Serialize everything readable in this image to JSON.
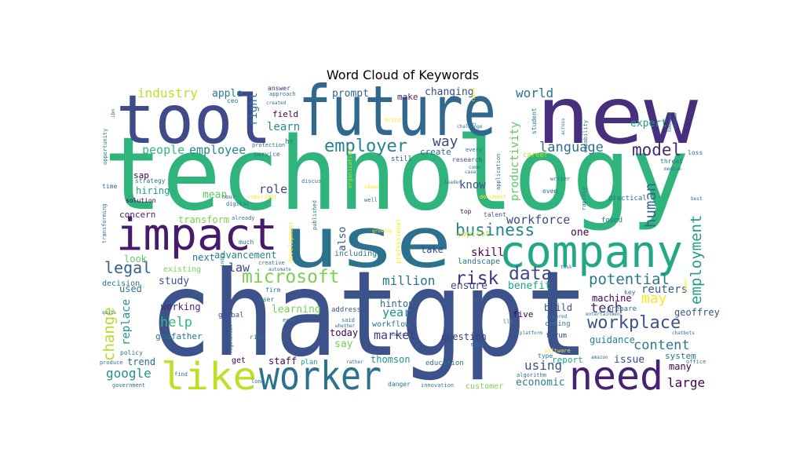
{
  "chart_data": {
    "type": "wordcloud",
    "title": "Word Cloud of Keywords",
    "colormap": "viridis",
    "background": "#ffffff",
    "words": [
      {
        "text": "chatgpt",
        "weight": 1.0,
        "color": "#3b528b"
      },
      {
        "text": "technology",
        "weight": 0.92,
        "color": "#2fb47c"
      },
      {
        "text": "new",
        "weight": 0.8,
        "color": "#472f7d"
      },
      {
        "text": "tool",
        "weight": 0.62,
        "color": "#3e4a89"
      },
      {
        "text": "future",
        "weight": 0.62,
        "color": "#31688e"
      },
      {
        "text": "use",
        "weight": 0.62,
        "color": "#2c728e"
      },
      {
        "text": "impact",
        "weight": 0.45,
        "color": "#481a6c"
      },
      {
        "text": "company",
        "weight": 0.45,
        "color": "#22a884"
      },
      {
        "text": "like",
        "weight": 0.42,
        "color": "#bddf26"
      },
      {
        "text": "worker",
        "weight": 0.4,
        "color": "#2c728e"
      },
      {
        "text": "need",
        "weight": 0.4,
        "color": "#482173"
      },
      {
        "text": "employer",
        "weight": 0.22,
        "color": "#26828e"
      },
      {
        "text": "microsoft",
        "weight": 0.21,
        "color": "#7ad151"
      },
      {
        "text": "workplace",
        "weight": 0.21,
        "color": "#3b528b"
      },
      {
        "text": "business",
        "weight": 0.18,
        "color": "#26828e"
      },
      {
        "text": "risk",
        "weight": 0.18,
        "color": "#46337e"
      },
      {
        "text": "data",
        "weight": 0.18,
        "color": "#3e4989"
      },
      {
        "text": "legal",
        "weight": 0.17,
        "color": "#33638d"
      },
      {
        "text": "model",
        "weight": 0.17,
        "color": "#482878"
      },
      {
        "text": "potential",
        "weight": 0.17,
        "color": "#2a788e"
      },
      {
        "text": "may",
        "weight": 0.16,
        "color": "#fde725"
      },
      {
        "text": "change",
        "weight": 0.16,
        "color": "#b5de2b"
      },
      {
        "text": "language",
        "weight": 0.14,
        "color": "#2d708e"
      },
      {
        "text": "way",
        "weight": 0.15,
        "color": "#3e4989"
      },
      {
        "text": "human",
        "weight": 0.15,
        "color": "#31688e"
      },
      {
        "text": "employment",
        "weight": 0.14,
        "color": "#1f9e89"
      },
      {
        "text": "help",
        "weight": 0.14,
        "color": "#35b779"
      },
      {
        "text": "content",
        "weight": 0.14,
        "color": "#2a788e"
      },
      {
        "text": "tech",
        "weight": 0.14,
        "color": "#482475"
      },
      {
        "text": "million",
        "weight": 0.13,
        "color": "#2c728e"
      },
      {
        "text": "google",
        "weight": 0.13,
        "color": "#21918c"
      },
      {
        "text": "using",
        "weight": 0.13,
        "color": "#3b528b"
      },
      {
        "text": "large",
        "weight": 0.13,
        "color": "#440154"
      },
      {
        "text": "industry",
        "weight": 0.13,
        "color": "#bddf26"
      },
      {
        "text": "world",
        "weight": 0.12,
        "color": "#2c728e"
      },
      {
        "text": "employee",
        "weight": 0.12,
        "color": "#25858e"
      },
      {
        "text": "people",
        "weight": 0.12,
        "color": "#35b779"
      },
      {
        "text": "workforce",
        "weight": 0.12,
        "color": "#3e4989"
      },
      {
        "text": "year",
        "weight": 0.12,
        "color": "#21918c"
      },
      {
        "text": "replace",
        "weight": 0.12,
        "color": "#21918c"
      },
      {
        "text": "role",
        "weight": 0.11,
        "color": "#414487"
      },
      {
        "text": "law",
        "weight": 0.11,
        "color": "#414487"
      },
      {
        "text": "skill",
        "weight": 0.11,
        "color": "#440154"
      },
      {
        "text": "market",
        "weight": 0.11,
        "color": "#443983"
      },
      {
        "text": "productivity",
        "weight": 0.11,
        "color": "#5ec962"
      },
      {
        "text": "learn",
        "weight": 0.1,
        "color": "#238a8d"
      },
      {
        "text": "right",
        "weight": 0.1,
        "color": "#2c728e"
      },
      {
        "text": "know",
        "weight": 0.1,
        "color": "#3b528b"
      },
      {
        "text": "expert",
        "weight": 0.1,
        "color": "#1f9e89"
      },
      {
        "text": "machine",
        "weight": 0.09,
        "color": "#440154"
      },
      {
        "text": "reuters",
        "weight": 0.09,
        "color": "#355f8d"
      },
      {
        "text": "ensure",
        "weight": 0.09,
        "color": "#3e4a89"
      },
      {
        "text": "benefit",
        "weight": 0.09,
        "color": "#20a386"
      },
      {
        "text": "mean",
        "weight": 0.09,
        "color": "#5ec962"
      },
      {
        "text": "study",
        "weight": 0.09,
        "color": "#3b528b"
      },
      {
        "text": "learning",
        "weight": 0.09,
        "color": "#7ad151"
      },
      {
        "text": "transform",
        "weight": 0.09,
        "color": "#7ad151"
      },
      {
        "text": "hiring",
        "weight": 0.09,
        "color": "#1f9e89"
      },
      {
        "text": "changing",
        "weight": 0.09,
        "color": "#3e4989"
      },
      {
        "text": "prompt",
        "weight": 0.09,
        "color": "#31688e"
      },
      {
        "text": "apple",
        "weight": 0.09,
        "color": "#2a788e"
      },
      {
        "text": "geoffrey",
        "weight": 0.09,
        "color": "#3b528b"
      },
      {
        "text": "guidance",
        "weight": 0.09,
        "color": "#277f8e"
      },
      {
        "text": "issue",
        "weight": 0.09,
        "color": "#3e4a89"
      },
      {
        "text": "economic",
        "weight": 0.09,
        "color": "#287d8e"
      },
      {
        "text": "hinton",
        "weight": 0.09,
        "color": "#31688e"
      },
      {
        "text": "say",
        "weight": 0.09,
        "color": "#7ad151"
      },
      {
        "text": "also",
        "weight": 0.09,
        "color": "#39568c"
      },
      {
        "text": "one",
        "weight": 0.09,
        "color": "#440154"
      },
      {
        "text": "used",
        "weight": 0.09,
        "color": "#2a788e"
      },
      {
        "text": "look",
        "weight": 0.09,
        "color": "#5ec962"
      },
      {
        "text": "next",
        "weight": 0.09,
        "color": "#2c728e"
      },
      {
        "text": "take",
        "weight": 0.09,
        "color": "#3e4a89"
      },
      {
        "text": "many",
        "weight": 0.09,
        "color": "#440154"
      },
      {
        "text": "advancement",
        "weight": 0.08,
        "color": "#26828e"
      },
      {
        "text": "staff",
        "weight": 0.08,
        "color": "#440154"
      },
      {
        "text": "thomson",
        "weight": 0.08,
        "color": "#21918c"
      },
      {
        "text": "working",
        "weight": 0.08,
        "color": "#482475"
      },
      {
        "text": "godfather",
        "weight": 0.08,
        "color": "#2c728e"
      },
      {
        "text": "trend",
        "weight": 0.08,
        "color": "#31688e"
      },
      {
        "text": "build",
        "weight": 0.08,
        "color": "#3b528b"
      },
      {
        "text": "report",
        "weight": 0.08,
        "color": "#20a386"
      },
      {
        "text": "question",
        "weight": 0.08,
        "color": "#443983"
      },
      {
        "text": "today",
        "weight": 0.08,
        "color": "#440154"
      },
      {
        "text": "five",
        "weight": 0.08,
        "color": "#440154"
      },
      {
        "text": "system",
        "weight": 0.08,
        "color": "#2c728e"
      },
      {
        "text": "concern",
        "weight": 0.08,
        "color": "#481a6c"
      },
      {
        "text": "make",
        "weight": 0.07,
        "color": "#482878"
      },
      {
        "text": "field",
        "weight": 0.07,
        "color": "#440154"
      },
      {
        "text": "create",
        "weight": 0.07,
        "color": "#31688e"
      },
      {
        "text": "sap",
        "weight": 0.07,
        "color": "#440154"
      },
      {
        "text": "landscape",
        "weight": 0.06,
        "color": "#2c728e"
      },
      {
        "text": "copilot",
        "weight": 0.06,
        "color": "#bddf26"
      },
      {
        "text": "including",
        "weight": 0.06,
        "color": "#2a788e"
      },
      {
        "text": "existing",
        "weight": 0.06,
        "color": "#7ad151"
      },
      {
        "text": "decision",
        "weight": 0.06,
        "color": "#2c728e"
      },
      {
        "text": "customer",
        "weight": 0.06,
        "color": "#7ad151"
      },
      {
        "text": "workflow",
        "weight": 0.06,
        "color": "#2c728e"
      },
      {
        "text": "education",
        "weight": 0.06,
        "color": "#2c728e"
      },
      {
        "text": "address",
        "weight": 0.06,
        "color": "#3b528b"
      },
      {
        "text": "global",
        "weight": 0.06,
        "color": "#3b528b"
      },
      {
        "text": "plan",
        "weight": 0.06,
        "color": "#1f9e89"
      },
      {
        "text": "get",
        "weight": 0.06,
        "color": "#440154"
      },
      {
        "text": "forum",
        "weight": 0.06,
        "color": "#3b528b"
      },
      {
        "text": "coming",
        "weight": 0.06,
        "color": "#2a788e"
      },
      {
        "text": "prepare",
        "weight": 0.06,
        "color": "#2c728e"
      },
      {
        "text": "practical",
        "weight": 0.06,
        "color": "#2c728e"
      },
      {
        "text": "career",
        "weight": 0.06,
        "color": "#bddf26"
      },
      {
        "text": "still",
        "weight": 0.06,
        "color": "#3b528b"
      },
      {
        "text": "research",
        "weight": 0.06,
        "color": "#3b528b"
      },
      {
        "text": "answer",
        "weight": 0.06,
        "color": "#482878"
      },
      {
        "text": "ceo",
        "weight": 0.06,
        "color": "#2a788e"
      },
      {
        "text": "hr",
        "weight": 0.06,
        "color": "#2c728e"
      },
      {
        "text": "strategy",
        "weight": 0.05,
        "color": "#2c728e"
      },
      {
        "text": "solution",
        "weight": 0.05,
        "color": "#440154"
      },
      {
        "text": "time",
        "weight": 0.05,
        "color": "#2c728e"
      },
      {
        "text": "found",
        "weight": 0.05,
        "color": "#2c728e"
      },
      {
        "text": "top",
        "weight": 0.05,
        "color": "#440154"
      },
      {
        "text": "talent",
        "weight": 0.05,
        "color": "#3b528b"
      },
      {
        "text": "even",
        "weight": 0.05,
        "color": "#2c728e"
      },
      {
        "text": "writer",
        "weight": 0.05,
        "color": "#2c728e"
      },
      {
        "text": "student",
        "weight": 0.05,
        "color": "#2c728e"
      },
      {
        "text": "service",
        "weight": 0.05,
        "color": "#2c728e"
      },
      {
        "text": "protection",
        "weight": 0.05,
        "color": "#2c728e"
      },
      {
        "text": "creative",
        "weight": 0.05,
        "color": "#2c728e"
      },
      {
        "text": "user",
        "weight": 0.05,
        "color": "#2c728e"
      },
      {
        "text": "firm",
        "weight": 0.05,
        "color": "#2c728e"
      },
      {
        "text": "government",
        "weight": 0.05,
        "color": "#2c728e"
      },
      {
        "text": "produce",
        "weight": 0.05,
        "color": "#2c728e"
      },
      {
        "text": "policy",
        "weight": 0.05,
        "color": "#2c728e"
      },
      {
        "text": "rise",
        "weight": 0.05,
        "color": "#2c728e"
      },
      {
        "text": "danger",
        "weight": 0.05,
        "color": "#2c728e"
      },
      {
        "text": "innovation",
        "weight": 0.05,
        "color": "#2c728e"
      },
      {
        "text": "office",
        "weight": 0.05,
        "color": "#2c728e"
      },
      {
        "text": "loss",
        "weight": 0.05,
        "color": "#2c728e"
      },
      {
        "text": "threat",
        "weight": 0.05,
        "color": "#2c728e"
      },
      {
        "text": "key",
        "weight": 0.05,
        "color": "#2c728e"
      },
      {
        "text": "much",
        "weight": 0.05,
        "color": "#2c728e"
      },
      {
        "text": "digital",
        "weight": 0.04,
        "color": "#2c728e"
      },
      {
        "text": "discus",
        "weight": 0.04,
        "color": "#2c728e"
      },
      {
        "text": "approach",
        "weight": 0.04,
        "color": "#2c728e"
      },
      {
        "text": "copyright",
        "weight": 0.04,
        "color": "#fde725"
      },
      {
        "text": "development",
        "weight": 0.04,
        "color": "#fde725"
      },
      {
        "text": "professional",
        "weight": 0.04,
        "color": "#fde725"
      },
      {
        "text": "published",
        "weight": 0.04,
        "color": "#2c728e"
      },
      {
        "text": "organization",
        "weight": 0.04,
        "color": "#bddf26"
      },
      {
        "text": "opportunity",
        "weight": 0.04,
        "color": "#2c728e"
      },
      {
        "text": "transforming",
        "weight": 0.04,
        "color": "#2c728e"
      },
      {
        "text": "rapidly",
        "weight": 0.04,
        "color": "#2c728e"
      },
      {
        "text": "capability",
        "weight": 0.04,
        "color": "#2c728e"
      },
      {
        "text": "application",
        "weight": 0.04,
        "color": "#2c728e"
      },
      {
        "text": "algorithm",
        "weight": 0.04,
        "color": "#2c728e"
      },
      {
        "text": "amazon",
        "weight": 0.03,
        "color": "#2c728e"
      },
      {
        "text": "chatbots",
        "weight": 0.03,
        "color": "#2c728e"
      },
      {
        "text": "platform",
        "weight": 0.03,
        "color": "#2c728e"
      },
      {
        "text": "entertainment",
        "weight": 0.03,
        "color": "#2c728e"
      },
      {
        "text": "software",
        "weight": 0.03,
        "color": "#fde725"
      },
      {
        "text": "type",
        "weight": 0.03,
        "color": "#2c728e"
      },
      {
        "text": "medium",
        "weight": 0.03,
        "color": "#2c728e"
      },
      {
        "text": "best",
        "weight": 0.03,
        "color": "#2c728e"
      },
      {
        "text": "power",
        "weight": 0.03,
        "color": "#fde725"
      },
      {
        "text": "across",
        "weight": 0.03,
        "color": "#2c728e"
      },
      {
        "text": "challenge",
        "weight": 0.03,
        "color": "#2c728e"
      },
      {
        "text": "leader",
        "weight": 0.03,
        "color": "#2c728e"
      },
      {
        "text": "document",
        "weight": 0.03,
        "color": "#fde725"
      },
      {
        "text": "image",
        "weight": 0.03,
        "color": "#fde725"
      },
      {
        "text": "well",
        "weight": 0.03,
        "color": "#2c728e"
      },
      {
        "text": "growing",
        "weight": 0.03,
        "color": "#fde725"
      },
      {
        "text": "various",
        "weight": 0.03,
        "color": "#2c728e"
      },
      {
        "text": "rather",
        "weight": 0.03,
        "color": "#2c728e"
      },
      {
        "text": "whether",
        "weight": 0.03,
        "color": "#2c728e"
      },
      {
        "text": "said",
        "weight": 0.03,
        "color": "#2c728e"
      },
      {
        "text": "llm",
        "weight": 0.03,
        "color": "#2c728e"
      },
      {
        "text": "must",
        "weight": 0.03,
        "color": "#2c728e"
      },
      {
        "text": "powered",
        "weight": 0.03,
        "color": "#2c728e"
      },
      {
        "text": "act",
        "weight": 0.03,
        "color": "#2c728e"
      },
      {
        "text": "task",
        "weight": 0.03,
        "color": "#2c728e"
      },
      {
        "text": "automate",
        "weight": 0.03,
        "color": "#2c728e"
      },
      {
        "text": "eeoc",
        "weight": 0.03,
        "color": "#2c728e"
      },
      {
        "text": "regulation",
        "weight": 0.03,
        "color": "#2c728e"
      },
      {
        "text": "india",
        "weight": 0.03,
        "color": "#2c728e"
      },
      {
        "text": "city",
        "weight": 0.03,
        "color": "#2c728e"
      },
      {
        "text": "quits",
        "weight": 0.03,
        "color": "#2c728e"
      },
      {
        "text": "find",
        "weight": 0.03,
        "color": "#2c728e"
      },
      {
        "text": "hour",
        "weight": 0.03,
        "color": "#2c728e"
      },
      {
        "text": "already",
        "weight": 0.03,
        "color": "#2c728e"
      },
      {
        "text": "long",
        "weight": 0.03,
        "color": "#2c728e"
      },
      {
        "text": "ibm",
        "weight": 0.03,
        "color": "#2c728e"
      },
      {
        "text": "created",
        "weight": 0.03,
        "color": "#2c728e"
      },
      {
        "text": "bring",
        "weight": 0.03,
        "color": "#fde725"
      },
      {
        "text": "every",
        "weight": 0.03,
        "color": "#2c728e"
      },
      {
        "text": "come",
        "weight": 0.03,
        "color": "#2c728e"
      },
      {
        "text": "case",
        "weight": 0.03,
        "color": "#2c728e"
      },
      {
        "text": "left",
        "weight": 0.03,
        "color": "#2c728e"
      },
      {
        "text": "however",
        "weight": 0.03,
        "color": "#2c728e"
      },
      {
        "text": "course",
        "weight": 0.03,
        "color": "#2c728e"
      },
      {
        "text": "rapid",
        "weight": 0.03,
        "color": "#fde725"
      }
    ]
  }
}
